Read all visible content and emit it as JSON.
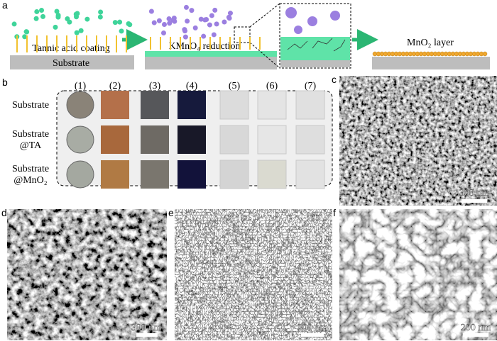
{
  "panels": {
    "a": {
      "label": "a",
      "steps": [
        "Tannic acid coating",
        "KMnO₄ reduction",
        "MnO₂ layer"
      ],
      "substrate": "Substrate"
    },
    "b": {
      "label": "b",
      "columns": [
        "(1)",
        "(2)",
        "(3)",
        "(4)",
        "(5)",
        "(6)",
        "(7)"
      ],
      "rows": [
        [
          "Substrate"
        ],
        [
          "Substrate",
          "@TA"
        ],
        [
          "Substrate",
          "@MnO₂"
        ]
      ]
    },
    "c": {
      "label": "c",
      "scale_bar": "300 nm"
    },
    "d": {
      "label": "d",
      "scale_bar": "300 nm"
    },
    "e": {
      "label": "e",
      "scale_bar": "200 nm"
    },
    "f": {
      "label": "f",
      "scale_bar": "200 nm"
    }
  }
}
